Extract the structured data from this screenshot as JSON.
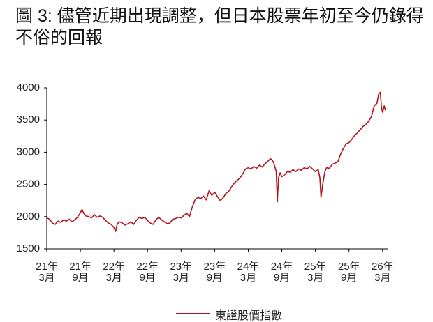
{
  "chart_data": {
    "type": "line",
    "title": "圖 3: 儘管近期出現調整，但日本股票年初至今仍錄得不俗的回報",
    "xlim": [
      0,
      60.9
    ],
    "xticks": [
      {
        "value": 0,
        "label": "21年\n3月"
      },
      {
        "value": 6,
        "label": "21年\n9月"
      },
      {
        "value": 12,
        "label": "22年\n3月"
      },
      {
        "value": 18,
        "label": "22年\n9月"
      },
      {
        "value": 24,
        "label": "23年\n3月"
      },
      {
        "value": 30,
        "label": "23年\n9月"
      },
      {
        "value": 36,
        "label": "24年\n3月"
      },
      {
        "value": 42,
        "label": "24年\n9月"
      },
      {
        "value": 48,
        "label": "25年\n3月"
      },
      {
        "value": 54,
        "label": "25年\n9月"
      },
      {
        "value": 60,
        "label": "26年\n3月"
      }
    ],
    "ylim": [
      1500,
      4000
    ],
    "yticks": [
      1500,
      2000,
      2500,
      3000,
      3500,
      4000
    ],
    "grid": false,
    "legend": "bottom",
    "series": [
      {
        "name": "東證股價指數",
        "color": "#b5121b",
        "x": [
          0,
          0.5,
          1,
          1.5,
          2,
          2.5,
          3,
          3.5,
          4,
          4.5,
          5,
          5.5,
          6,
          6.3,
          6.6,
          7,
          7.5,
          8,
          8.5,
          9,
          9.5,
          10,
          10.5,
          11,
          11.5,
          12,
          12.3,
          12.6,
          13,
          13.5,
          14,
          14.5,
          15,
          15.5,
          16,
          16.5,
          17,
          17.5,
          18,
          18.5,
          19,
          19.5,
          20,
          20.5,
          21,
          21.5,
          22,
          22.5,
          23,
          23.5,
          24,
          24.5,
          25,
          25.5,
          26,
          26.5,
          27,
          27.5,
          28,
          28.5,
          29,
          29.5,
          30,
          30.5,
          31,
          31.5,
          32,
          32.5,
          33,
          33.5,
          34,
          34.5,
          35,
          35.5,
          36,
          36.5,
          37,
          37.5,
          38,
          38.5,
          39,
          39.5,
          40,
          40.5,
          41,
          41.2,
          41.4,
          41.7,
          42,
          42.5,
          43,
          43.5,
          44,
          44.5,
          45,
          45.5,
          46,
          46.5,
          47,
          47.5,
          48,
          48.5,
          48.8,
          49,
          49.3,
          49.7,
          50,
          50.5,
          51,
          51.5,
          52,
          52.5,
          53,
          53.5,
          54,
          54.5,
          55,
          55.5,
          56,
          56.5,
          57,
          57.5,
          58,
          58.5,
          59,
          59.3,
          59.6,
          59.8,
          60,
          60.3,
          60.5
        ],
        "values": [
          1980,
          1960,
          1900,
          1880,
          1930,
          1910,
          1950,
          1930,
          1960,
          1920,
          1950,
          1990,
          2060,
          2110,
          2050,
          2010,
          2000,
          1980,
          2030,
          1990,
          2010,
          1990,
          1940,
          1900,
          1880,
          1830,
          1770,
          1890,
          1920,
          1900,
          1870,
          1890,
          1920,
          1880,
          1940,
          1990,
          1970,
          1990,
          1940,
          1900,
          1880,
          1950,
          1990,
          1950,
          1920,
          1890,
          1900,
          1960,
          1970,
          1990,
          1980,
          2020,
          2050,
          2000,
          2150,
          2260,
          2300,
          2280,
          2320,
          2260,
          2400,
          2330,
          2380,
          2310,
          2250,
          2290,
          2360,
          2390,
          2460,
          2520,
          2560,
          2600,
          2660,
          2740,
          2760,
          2740,
          2780,
          2750,
          2800,
          2770,
          2820,
          2860,
          2900,
          2850,
          2700,
          2230,
          2600,
          2680,
          2620,
          2650,
          2700,
          2690,
          2730,
          2700,
          2740,
          2720,
          2760,
          2740,
          2780,
          2740,
          2700,
          2730,
          2600,
          2300,
          2500,
          2700,
          2760,
          2750,
          2810,
          2830,
          2850,
          2970,
          3060,
          3130,
          3150,
          3200,
          3260,
          3300,
          3350,
          3400,
          3430,
          3480,
          3550,
          3720,
          3760,
          3900,
          3930,
          3700,
          3620,
          3720,
          3650
        ]
      }
    ]
  }
}
